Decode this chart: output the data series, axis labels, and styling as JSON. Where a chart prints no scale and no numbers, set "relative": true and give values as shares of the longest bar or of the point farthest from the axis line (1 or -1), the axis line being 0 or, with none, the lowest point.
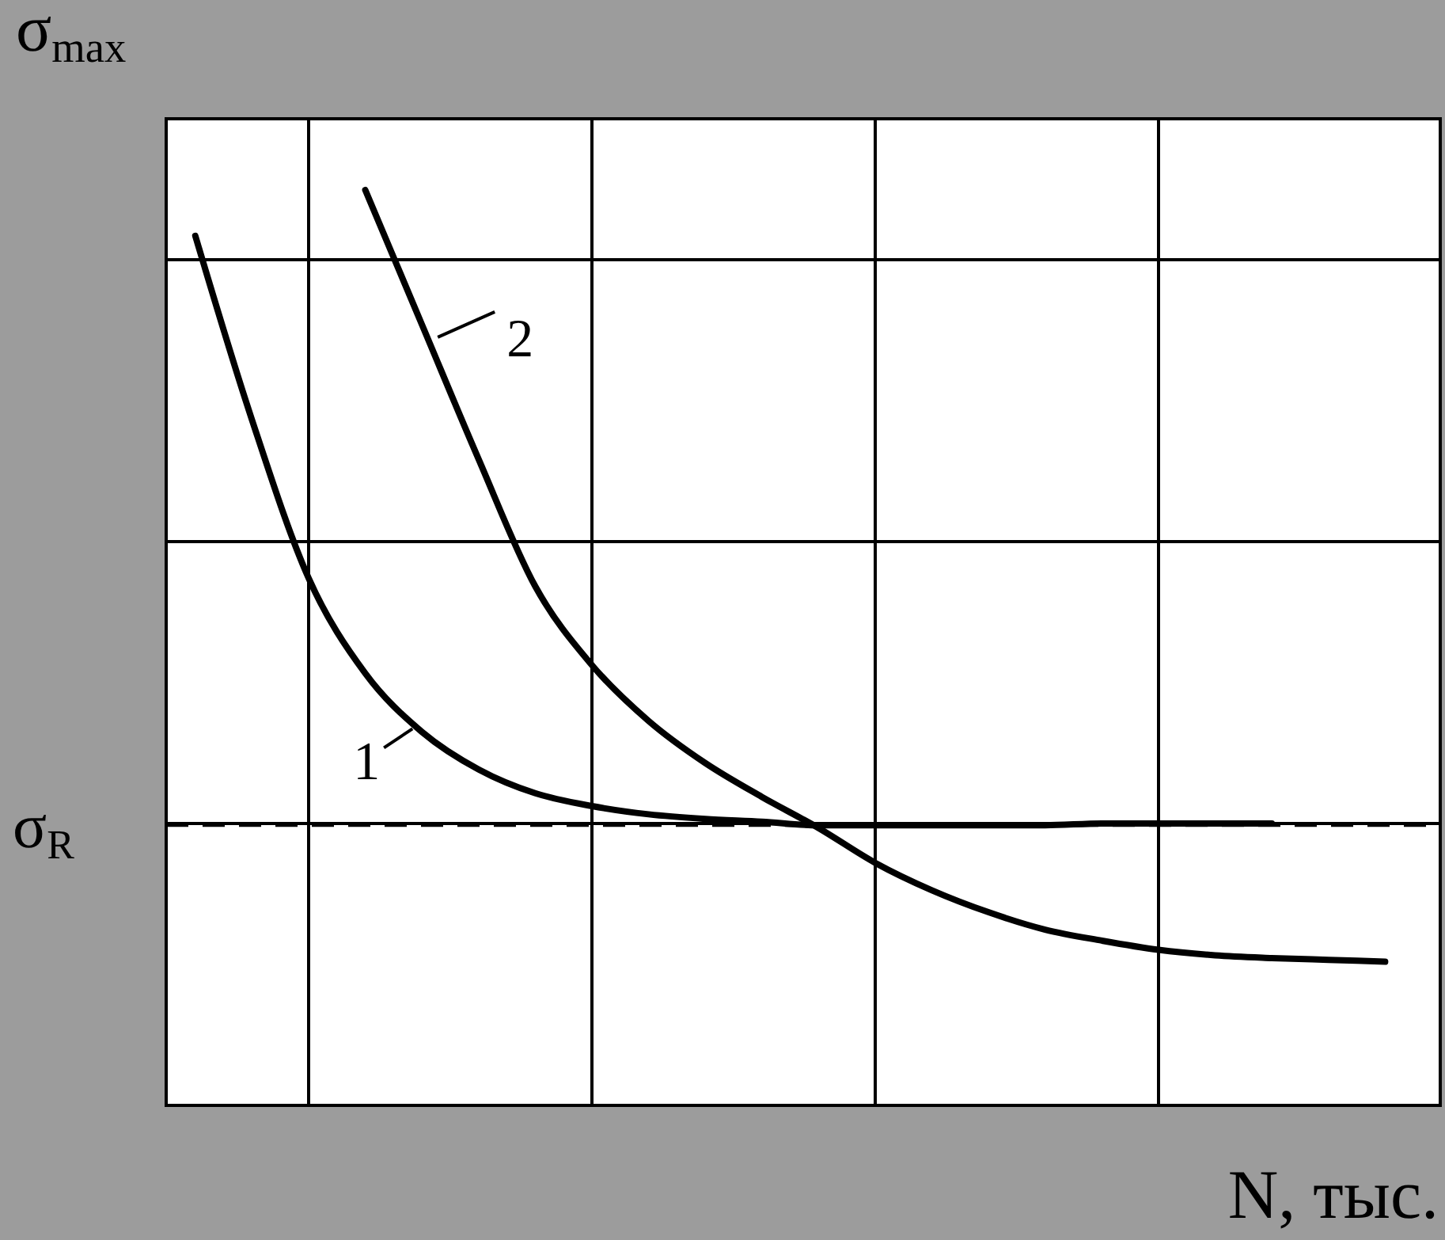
{
  "chart_data": {
    "type": "line",
    "relative": true,
    "xlabel": "N, тыс.",
    "ylabel": "σ$_{max}$",
    "categories": [
      null,
      null,
      null,
      null,
      null,
      null,
      null,
      null,
      null,
      null,
      null,
      null,
      null,
      null,
      null,
      null,
      null,
      null,
      null,
      null,
      null,
      null
    ],
    "grid": true,
    "line_style": "solid",
    "ref_lines": [
      {
        "axis": "y",
        "value": 0.306,
        "label": "σ$_{R}$",
        "line_style": "dashed",
        "color": "#000000"
      }
    ],
    "series": [
      {
        "name": "1",
        "color": "#000000",
        "values": [
          0.95,
          0.749,
          0.576,
          0.472,
          0.408,
          0.367,
          0.341,
          0.327,
          0.318,
          0.313,
          0.31,
          0.306,
          0.306,
          0.306,
          0.306,
          0.306,
          0.308,
          0.308,
          0.308,
          0.308,
          null,
          null
        ]
      },
      {
        "name": "2",
        "color": "#000000",
        "values": [
          null,
          null,
          null,
          1.0,
          0.853,
          0.706,
          0.567,
          0.481,
          0.42,
          0.374,
          0.337,
          0.303,
          0.265,
          0.235,
          0.211,
          0.192,
          0.18,
          0.17,
          0.164,
          0.161,
          0.159,
          0.157
        ]
      }
    ]
  }
}
